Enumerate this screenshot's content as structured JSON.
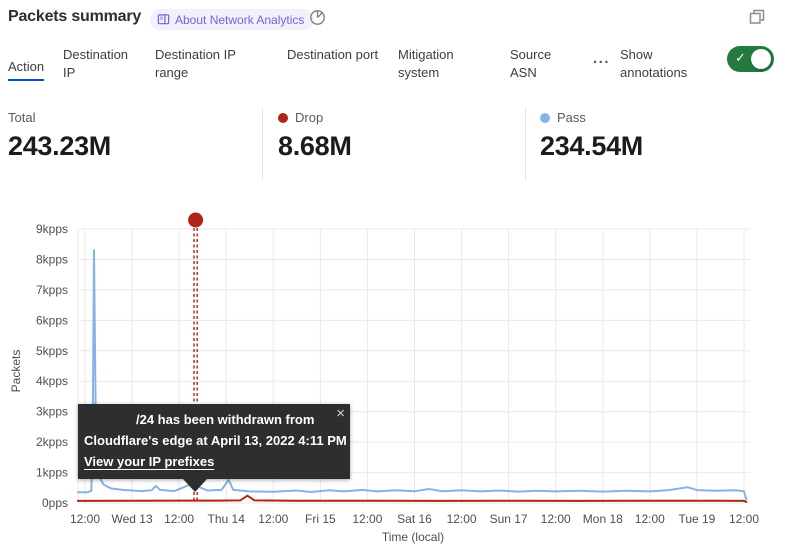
{
  "header": {
    "title": "Packets summary",
    "about_badge_label": "About Network Analytics"
  },
  "tabs": {
    "items": [
      {
        "label": "Action",
        "selected": true
      },
      {
        "label": "Destination IP",
        "selected": false
      },
      {
        "label": "Destination IP range",
        "selected": false
      },
      {
        "label": "Destination port",
        "selected": false
      },
      {
        "label": "Mitigation system",
        "selected": false
      },
      {
        "label": "Source ASN",
        "selected": false
      }
    ],
    "more_label": "...",
    "show_annotations_label": "Show annotations",
    "annotations_toggle_on": true,
    "toggle_check_glyph": "✓"
  },
  "stats": {
    "items": [
      {
        "label": "Total",
        "value": "243.23M"
      },
      {
        "label": "Drop",
        "value": "8.68M"
      },
      {
        "label": "Pass",
        "value": "234.54M"
      }
    ]
  },
  "colors": {
    "accent": "#0051c3",
    "toggle-green": "#24793f",
    "drop": "#b02418",
    "pass": "#85b3e8",
    "badge-bg": "#f1f0fc",
    "badge-fg": "#6e67dd",
    "grid": "#e9e9e9",
    "tooltip-bg": "#2e2e2e"
  },
  "chart_data": {
    "type": "line",
    "title": "Packets summary",
    "xlabel": "Time (local)",
    "ylabel": "Packets",
    "x_unit": "hours since first tick; ticks every 12 hours",
    "ylim_pps": [
      0,
      9000
    ],
    "grid": true,
    "x_ticks": [
      "12:00",
      "Wed 13",
      "12:00",
      "Thu 14",
      "12:00",
      "Fri 15",
      "12:00",
      "Sat 16",
      "12:00",
      "Sun 17",
      "12:00",
      "Mon 18",
      "12:00",
      "Tue 19",
      "12:00"
    ],
    "y_ticks": [
      {
        "value": 0,
        "label": "0pps"
      },
      {
        "value": 1,
        "label": "1kpps"
      },
      {
        "value": 2,
        "label": "2kpps"
      },
      {
        "value": 3,
        "label": "3kpps"
      },
      {
        "value": 4,
        "label": "4kpps"
      },
      {
        "value": 5,
        "label": "5kpps"
      },
      {
        "value": 6,
        "label": "6kpps"
      },
      {
        "value": 7,
        "label": "7kpps"
      },
      {
        "value": 8,
        "label": "8kpps"
      },
      {
        "value": 9,
        "label": "9kpps"
      }
    ],
    "series": [
      {
        "name": "Pass",
        "color": "#85b3e8",
        "points": [
          [
            -1.8,
            350
          ],
          [
            0.6,
            350
          ],
          [
            1.6,
            400
          ],
          [
            2.0,
            2800
          ],
          [
            2.3,
            8300
          ],
          [
            2.7,
            3200
          ],
          [
            3.6,
            850
          ],
          [
            4.8,
            600
          ],
          [
            6.6,
            480
          ],
          [
            9.6,
            430
          ],
          [
            14.4,
            390
          ],
          [
            17.0,
            420
          ],
          [
            18.0,
            560
          ],
          [
            19.2,
            430
          ],
          [
            22.8,
            390
          ],
          [
            25.2,
            520
          ],
          [
            27.0,
            620
          ],
          [
            28.8,
            540
          ],
          [
            31.2,
            410
          ],
          [
            34.8,
            430
          ],
          [
            36.6,
            760
          ],
          [
            37.8,
            430
          ],
          [
            42.0,
            380
          ],
          [
            48.0,
            370
          ],
          [
            54.0,
            410
          ],
          [
            57.6,
            360
          ],
          [
            62.4,
            420
          ],
          [
            66.0,
            380
          ],
          [
            70.8,
            430
          ],
          [
            74.4,
            380
          ],
          [
            79.2,
            420
          ],
          [
            84.0,
            385
          ],
          [
            87.6,
            460
          ],
          [
            91.2,
            385
          ],
          [
            96.0,
            420
          ],
          [
            100.8,
            380
          ],
          [
            105.6,
            410
          ],
          [
            110.4,
            375
          ],
          [
            115.2,
            405
          ],
          [
            120.0,
            380
          ],
          [
            126.0,
            405
          ],
          [
            132.0,
            375
          ],
          [
            138.0,
            405
          ],
          [
            144.0,
            380
          ],
          [
            148.8,
            425
          ],
          [
            153.6,
            520
          ],
          [
            156.0,
            425
          ],
          [
            160.8,
            405
          ],
          [
            165.6,
            420
          ],
          [
            168.0,
            385
          ],
          [
            168.6,
            120
          ]
        ]
      },
      {
        "name": "Drop",
        "color": "#b02418",
        "points": [
          [
            -1.8,
            70
          ],
          [
            12,
            72
          ],
          [
            24,
            78
          ],
          [
            33.6,
            80
          ],
          [
            39.6,
            85
          ],
          [
            41.4,
            240
          ],
          [
            43.2,
            85
          ],
          [
            54,
            72
          ],
          [
            72,
            76
          ],
          [
            90,
            70
          ],
          [
            108,
            76
          ],
          [
            126,
            70
          ],
          [
            144,
            74
          ],
          [
            162,
            72
          ],
          [
            168.0,
            70
          ],
          [
            168.6,
            40
          ]
        ]
      }
    ],
    "annotation": {
      "x_hour": 28.2,
      "color": "#b02418"
    }
  },
  "tooltip": {
    "lines": [
      "/24 has been withdrawn from",
      "Cloudflare's edge at April 13, 2022 4:11 PM"
    ],
    "link_label": "View your IP prefixes",
    "close_glyph": "×"
  }
}
